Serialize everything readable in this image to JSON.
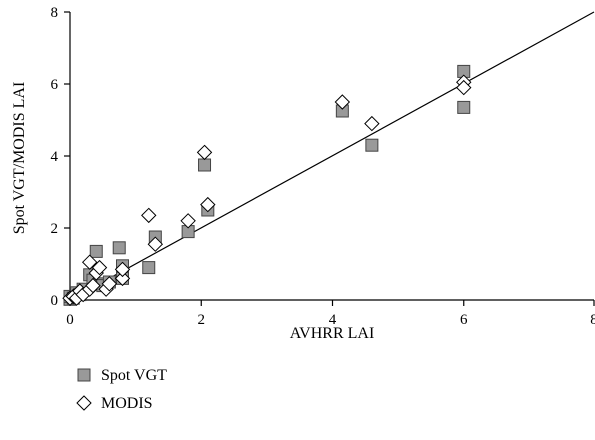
{
  "chart_data": {
    "type": "scatter",
    "xlabel": "AVHRR LAI",
    "ylabel": "Spot VGT/MODIS LAI",
    "xlim": [
      0,
      8
    ],
    "ylim": [
      0,
      8
    ],
    "xticks": [
      "0",
      "2",
      "4",
      "6",
      "8"
    ],
    "yticks": [
      "0",
      "2",
      "4",
      "6",
      "8"
    ],
    "grid": false,
    "legend_position": "bottom-left",
    "reference_line": {
      "type": "1:1",
      "from": [
        0,
        0
      ],
      "to": [
        8,
        8
      ]
    },
    "series": [
      {
        "name": "Spot VGT",
        "marker": "square",
        "color": "#999999",
        "points": [
          [
            0,
            0.02
          ],
          [
            0,
            0.1
          ],
          [
            0.05,
            0.05
          ],
          [
            0.1,
            0.2
          ],
          [
            0.15,
            0.15
          ],
          [
            0.2,
            0.3
          ],
          [
            0.3,
            0.7
          ],
          [
            0.35,
            0.55
          ],
          [
            0.4,
            1.35
          ],
          [
            0.45,
            0.45
          ],
          [
            0.5,
            0.4
          ],
          [
            0.6,
            0.5
          ],
          [
            0.75,
            1.45
          ],
          [
            0.8,
            0.6
          ],
          [
            0.8,
            0.95
          ],
          [
            1.2,
            0.9
          ],
          [
            1.3,
            1.75
          ],
          [
            1.8,
            1.9
          ],
          [
            2.05,
            3.75
          ],
          [
            2.1,
            2.5
          ],
          [
            4.15,
            5.25
          ],
          [
            4.6,
            4.3
          ],
          [
            6.0,
            6.35
          ],
          [
            6.0,
            5.35
          ]
        ]
      },
      {
        "name": "MODIS",
        "marker": "diamond",
        "color": "#ffffff",
        "points": [
          [
            0,
            0.05
          ],
          [
            0.05,
            0.1
          ],
          [
            0.1,
            0.05
          ],
          [
            0.15,
            0.25
          ],
          [
            0.2,
            0.15
          ],
          [
            0.3,
            0.3
          ],
          [
            0.3,
            1.05
          ],
          [
            0.35,
            0.4
          ],
          [
            0.4,
            0.75
          ],
          [
            0.45,
            0.9
          ],
          [
            0.55,
            0.3
          ],
          [
            0.6,
            0.45
          ],
          [
            0.8,
            0.6
          ],
          [
            0.8,
            0.85
          ],
          [
            1.2,
            2.35
          ],
          [
            1.3,
            1.55
          ],
          [
            1.8,
            2.2
          ],
          [
            2.05,
            4.1
          ],
          [
            2.1,
            2.65
          ],
          [
            4.15,
            5.5
          ],
          [
            4.6,
            4.9
          ],
          [
            6.0,
            6.05
          ],
          [
            6.0,
            5.9
          ]
        ]
      }
    ]
  }
}
